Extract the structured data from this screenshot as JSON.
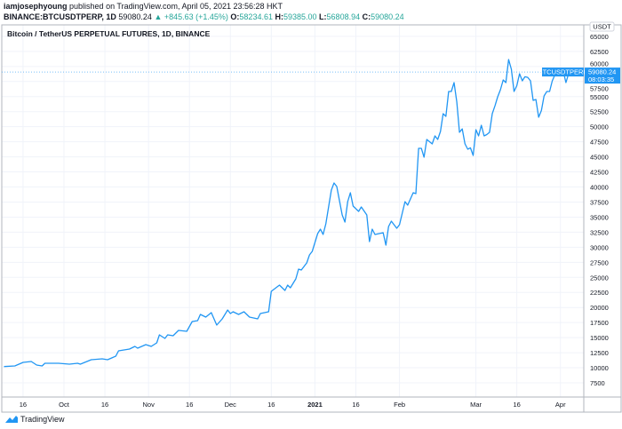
{
  "header": {
    "author": "iamjosephyoung",
    "published": "published on TradingView.com, April 05, 2021 23:56:28 HKT",
    "symbol": "BINANCE:BTCUSDTPERP, 1D",
    "last": "59080.24",
    "change": "▲ +845.63 (+1.45%)",
    "o_label": "O:",
    "o": "58234.61",
    "h_label": "H:",
    "h": "59385.00",
    "l_label": "L:",
    "l": "56808.94",
    "c_label": "C:",
    "c": "59080.24"
  },
  "footer": {
    "logo_text": "TradingView"
  },
  "colors": {
    "line": "#2196f3",
    "up": "#26a69a",
    "grid": "#f0f3fa",
    "label_bg": "#2196f3"
  },
  "chart_data": {
    "type": "line",
    "title": "Bitcoin / TetherUS PERPETUAL FUTURES, 1D, BINANCE",
    "currency": "USDT",
    "grid": true,
    "ylim": [
      5000,
      67500
    ],
    "yticks": [
      "65000",
      "62500",
      "60000",
      "57500",
      "55000",
      "52500",
      "50000",
      "47500",
      "45000",
      "42500",
      "40000",
      "37500",
      "35000",
      "32500",
      "30000",
      "27500",
      "25000",
      "22500",
      "20000",
      "17500",
      "15000",
      "12500",
      "10000",
      "7500"
    ],
    "xticks": [
      {
        "label": "16",
        "date": "2020-09-16"
      },
      {
        "label": "Oct",
        "date": "2020-10-01"
      },
      {
        "label": "16",
        "date": "2020-10-16"
      },
      {
        "label": "Nov",
        "date": "2020-11-01"
      },
      {
        "label": "16",
        "date": "2020-11-16"
      },
      {
        "label": "Dec",
        "date": "2020-12-01"
      },
      {
        "label": "16",
        "date": "2020-12-16"
      },
      {
        "label": "2021",
        "date": "2021-01-01",
        "bold": true
      },
      {
        "label": "16",
        "date": "2021-01-16"
      },
      {
        "label": "Feb",
        "date": "2021-02-01"
      },
      {
        "label": "Mar",
        "date": "2021-03-01"
      },
      {
        "label": "16",
        "date": "2021-03-16"
      },
      {
        "label": "Apr",
        "date": "2021-04-01"
      }
    ],
    "last_price": {
      "symbol": "BTCUSDTPERP",
      "value": 59080.24,
      "price_label": "59080.24",
      "countdown": "08:03:35"
    },
    "series": [
      {
        "points": [
          [
            "2020-09-09",
            10200
          ],
          [
            "2020-09-13",
            10300
          ],
          [
            "2020-09-16",
            10890
          ],
          [
            "2020-09-19",
            11040
          ],
          [
            "2020-09-21",
            10450
          ],
          [
            "2020-09-23",
            10300
          ],
          [
            "2020-09-24",
            10740
          ],
          [
            "2020-09-29",
            10740
          ],
          [
            "2020-10-03",
            10600
          ],
          [
            "2020-10-06",
            10740
          ],
          [
            "2020-10-07",
            10600
          ],
          [
            "2020-10-11",
            11330
          ],
          [
            "2020-10-15",
            11480
          ],
          [
            "2020-10-17",
            11330
          ],
          [
            "2020-10-20",
            11920
          ],
          [
            "2020-10-21",
            12810
          ],
          [
            "2020-10-25",
            13100
          ],
          [
            "2020-10-27",
            13540
          ],
          [
            "2020-10-28",
            13250
          ],
          [
            "2020-10-31",
            13840
          ],
          [
            "2020-11-02",
            13540
          ],
          [
            "2020-11-04",
            14130
          ],
          [
            "2020-11-05",
            15460
          ],
          [
            "2020-11-07",
            14870
          ],
          [
            "2020-11-08",
            15460
          ],
          [
            "2020-11-10",
            15310
          ],
          [
            "2020-11-12",
            16200
          ],
          [
            "2020-11-15",
            16050
          ],
          [
            "2020-11-17",
            17670
          ],
          [
            "2020-11-19",
            17820
          ],
          [
            "2020-11-20",
            18850
          ],
          [
            "2020-11-22",
            18410
          ],
          [
            "2020-11-24",
            19150
          ],
          [
            "2020-11-26",
            17080
          ],
          [
            "2020-11-28",
            18110
          ],
          [
            "2020-11-30",
            19590
          ],
          [
            "2020-12-01",
            19000
          ],
          [
            "2020-12-02",
            19290
          ],
          [
            "2020-12-04",
            18850
          ],
          [
            "2020-12-06",
            19290
          ],
          [
            "2020-12-08",
            18410
          ],
          [
            "2020-12-11",
            18110
          ],
          [
            "2020-12-12",
            19000
          ],
          [
            "2020-12-15",
            19290
          ],
          [
            "2020-12-16",
            22680
          ],
          [
            "2020-12-19",
            23710
          ],
          [
            "2020-12-21",
            22830
          ],
          [
            "2020-12-22",
            23710
          ],
          [
            "2020-12-23",
            23270
          ],
          [
            "2020-12-25",
            24750
          ],
          [
            "2020-12-26",
            26370
          ],
          [
            "2020-12-27",
            26220
          ],
          [
            "2020-12-29",
            27400
          ],
          [
            "2020-12-30",
            28730
          ],
          [
            "2020-12-31",
            29320
          ],
          [
            "2021-01-02",
            32260
          ],
          [
            "2021-01-03",
            33000
          ],
          [
            "2021-01-04",
            32120
          ],
          [
            "2021-01-05",
            33880
          ],
          [
            "2021-01-07",
            39490
          ],
          [
            "2021-01-08",
            40670
          ],
          [
            "2021-01-09",
            40080
          ],
          [
            "2021-01-11",
            35360
          ],
          [
            "2021-01-12",
            34180
          ],
          [
            "2021-01-13",
            37570
          ],
          [
            "2021-01-14",
            39040
          ],
          [
            "2021-01-15",
            36830
          ],
          [
            "2021-01-17",
            35950
          ],
          [
            "2021-01-18",
            36690
          ],
          [
            "2021-01-20",
            35360
          ],
          [
            "2021-01-21",
            30940
          ],
          [
            "2021-01-22",
            33000
          ],
          [
            "2021-01-23",
            32120
          ],
          [
            "2021-01-26",
            32410
          ],
          [
            "2021-01-27",
            30350
          ],
          [
            "2021-01-28",
            33440
          ],
          [
            "2021-01-29",
            34330
          ],
          [
            "2021-01-31",
            33150
          ],
          [
            "2021-02-01",
            33740
          ],
          [
            "2021-02-03",
            37570
          ],
          [
            "2021-02-04",
            36980
          ],
          [
            "2021-02-06",
            39040
          ],
          [
            "2021-02-07",
            38900
          ],
          [
            "2021-02-08",
            46410
          ],
          [
            "2021-02-09",
            46410
          ],
          [
            "2021-02-10",
            44940
          ],
          [
            "2021-02-11",
            47890
          ],
          [
            "2021-02-13",
            47150
          ],
          [
            "2021-02-14",
            48480
          ],
          [
            "2021-02-15",
            47890
          ],
          [
            "2021-02-16",
            49210
          ],
          [
            "2021-02-17",
            52160
          ],
          [
            "2021-02-18",
            51720
          ],
          [
            "2021-02-19",
            55850
          ],
          [
            "2021-02-20",
            55850
          ],
          [
            "2021-02-21",
            57320
          ],
          [
            "2021-02-22",
            54100
          ],
          [
            "2021-02-23",
            49070
          ],
          [
            "2021-02-24",
            49650
          ],
          [
            "2021-02-25",
            47150
          ],
          [
            "2021-02-26",
            46270
          ],
          [
            "2021-02-27",
            46500
          ],
          [
            "2021-02-28",
            45230
          ],
          [
            "2021-03-01",
            49510
          ],
          [
            "2021-03-02",
            48480
          ],
          [
            "2021-03-03",
            50250
          ],
          [
            "2021-03-04",
            48480
          ],
          [
            "2021-03-05",
            48700
          ],
          [
            "2021-03-06",
            49070
          ],
          [
            "2021-03-07",
            52160
          ],
          [
            "2021-03-08",
            53500
          ],
          [
            "2021-03-09",
            54960
          ],
          [
            "2021-03-10",
            56140
          ],
          [
            "2021-03-11",
            57760
          ],
          [
            "2021-03-12",
            57320
          ],
          [
            "2021-03-13",
            61150
          ],
          [
            "2021-03-14",
            59530
          ],
          [
            "2021-03-15",
            55850
          ],
          [
            "2021-03-16",
            56800
          ],
          [
            "2021-03-17",
            58800
          ],
          [
            "2021-03-18",
            57620
          ],
          [
            "2021-03-19",
            58300
          ],
          [
            "2021-03-20",
            58200
          ],
          [
            "2021-03-21",
            57620
          ],
          [
            "2021-03-22",
            54370
          ],
          [
            "2021-03-23",
            54520
          ],
          [
            "2021-03-24",
            51570
          ],
          [
            "2021-03-25",
            52700
          ],
          [
            "2021-03-26",
            55110
          ],
          [
            "2021-03-27",
            55850
          ],
          [
            "2021-03-28",
            55850
          ],
          [
            "2021-03-29",
            57600
          ],
          [
            "2021-03-30",
            58650
          ],
          [
            "2021-03-31",
            58950
          ],
          [
            "2021-04-01",
            59000
          ],
          [
            "2021-04-02",
            59250
          ],
          [
            "2021-04-03",
            57320
          ],
          [
            "2021-04-04",
            58800
          ],
          [
            "2021-04-05",
            59080.24
          ]
        ]
      }
    ]
  }
}
